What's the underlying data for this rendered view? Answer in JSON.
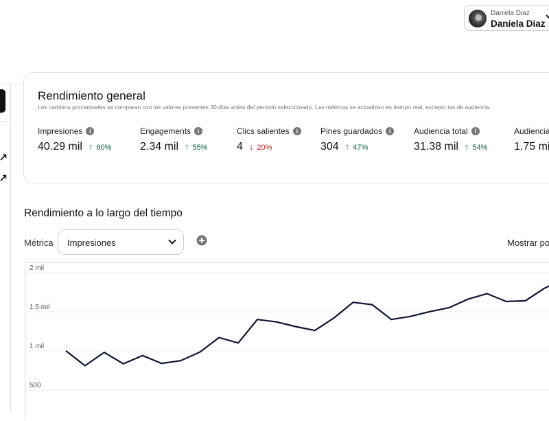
{
  "header": {
    "account_small_name": "Daniela Diaz",
    "account_name": "Daniela Diaz",
    "avatar_icon": "user-avatar"
  },
  "overview": {
    "title": "Rendimiento general",
    "subtitle": "Los cambios porcentuales se comparan con los valores presentes 30 días antes del período seleccionado. Las métricas se actualizan en tiempo real, excepto las de audiencia.",
    "metrics": [
      {
        "label": "Impresiones",
        "value": "40.29 mil",
        "arrow": "↑",
        "pct": "60%",
        "trend": "up"
      },
      {
        "label": "Engagements",
        "value": "2.34 mil",
        "arrow": "↑",
        "pct": "55%",
        "trend": "up"
      },
      {
        "label": "Clics salientes",
        "value": "4",
        "arrow": "↓",
        "pct": "20%",
        "trend": "down"
      },
      {
        "label": "Pines guardados",
        "value": "304",
        "arrow": "↑",
        "pct": "47%",
        "trend": "up"
      },
      {
        "label": "Audiencia total",
        "value": "31.38 mil",
        "arrow": "↑",
        "pct": "54%",
        "trend": "up"
      },
      {
        "label": "Audiencia",
        "value": "1.75 mi",
        "arrow": "",
        "pct": "",
        "trend": ""
      }
    ]
  },
  "over_time": {
    "title": "Rendimiento a lo largo del tiempo",
    "metric_label": "Métrica",
    "selected_metric": "Impresiones",
    "show_by_label": "Mostrar po"
  },
  "colors": {
    "line": "#0b1533",
    "up": "#0a6b3a",
    "down": "#cc1f1f"
  },
  "chart_data": {
    "type": "line",
    "y_tick_labels": [
      "2 mil",
      "1.5 mil",
      "1 mil",
      "500"
    ],
    "y_ticks": [
      2000,
      1500,
      1000,
      500
    ],
    "ylim": [
      350,
      2050
    ],
    "series": [
      {
        "values": [
          940,
          750,
          920,
          775,
          880,
          780,
          815,
          925,
          1110,
          1040,
          1340,
          1310,
          1250,
          1200,
          1360,
          1560,
          1530,
          1340,
          1380,
          1440,
          1490,
          1600,
          1670,
          1570,
          1580,
          1740,
          1850
        ]
      }
    ],
    "grid": true
  }
}
